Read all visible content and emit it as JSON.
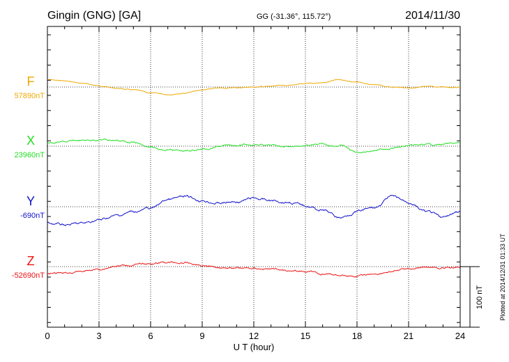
{
  "chart_data": {
    "type": "line",
    "title": "Gingin (GNG)  [GA]",
    "subtitle": "GG (-31.36°, 115.72°)",
    "date": "2014/11/30",
    "xlabel": "U T (hour)",
    "xlim": [
      0,
      24
    ],
    "x_ticks": [
      "0",
      "3",
      "6",
      "9",
      "12",
      "15",
      "18",
      "21",
      "24"
    ],
    "scale_label": "100 nT",
    "scale_nT": 100,
    "footer": "Plotted at 2014/12/31 01:33 UT",
    "grid": true,
    "series": [
      {
        "name": "F",
        "baseline_label": "57890nT",
        "baseline_nT": 57890,
        "color": "#f0a800",
        "x": [
          0,
          1,
          2,
          3,
          4,
          5,
          6,
          7,
          8,
          9,
          10,
          11,
          12,
          13,
          14,
          15,
          16,
          17,
          18,
          19,
          20,
          21,
          22,
          23,
          24
        ],
        "values": [
          12,
          10,
          6,
          2,
          -2,
          -5,
          -10,
          -12,
          -10,
          -5,
          -2,
          -1,
          0,
          1,
          3,
          5,
          7,
          12,
          8,
          3,
          0,
          -1,
          0,
          0,
          0
        ]
      },
      {
        "name": "X",
        "baseline_label": "23960nT",
        "baseline_nT": 23960,
        "color": "#22dd22",
        "x": [
          0,
          1,
          2,
          3,
          4,
          5,
          6,
          7,
          8,
          9,
          10,
          11,
          12,
          13,
          14,
          15,
          16,
          17,
          18,
          19,
          20,
          21,
          22,
          23,
          24
        ],
        "values": [
          5,
          7,
          9,
          11,
          10,
          6,
          -3,
          -6,
          -8,
          -5,
          0,
          2,
          3,
          1,
          0,
          1,
          2,
          1,
          -10,
          -7,
          -3,
          0,
          2,
          3,
          5
        ]
      },
      {
        "name": "Y",
        "baseline_label": "-690nT",
        "baseline_nT": -690,
        "color": "#1111cc",
        "x": [
          0,
          1,
          2,
          3,
          4,
          5,
          6,
          7,
          8,
          9,
          10,
          11,
          12,
          13,
          14,
          15,
          16,
          17,
          18,
          19,
          20,
          21,
          22,
          23,
          24
        ],
        "values": [
          -27,
          -30,
          -28,
          -22,
          -15,
          -8,
          -3,
          12,
          16,
          10,
          6,
          8,
          14,
          10,
          8,
          2,
          -6,
          -18,
          -8,
          -2,
          16,
          8,
          -8,
          -18,
          -8
        ]
      },
      {
        "name": "Z",
        "baseline_label": "-52690nT",
        "baseline_nT": -52690,
        "color": "#ee1111",
        "x": [
          0,
          1,
          2,
          3,
          4,
          5,
          6,
          7,
          8,
          9,
          10,
          11,
          12,
          13,
          14,
          15,
          16,
          17,
          18,
          19,
          20,
          21,
          22,
          23,
          24
        ],
        "values": [
          -12,
          -11,
          -8,
          -4,
          1,
          3,
          5,
          7,
          6,
          2,
          -1,
          -2,
          -3,
          -4,
          -6,
          -8,
          -12,
          -14,
          -16,
          -12,
          -8,
          -3,
          -1,
          -2,
          -3
        ]
      }
    ]
  }
}
